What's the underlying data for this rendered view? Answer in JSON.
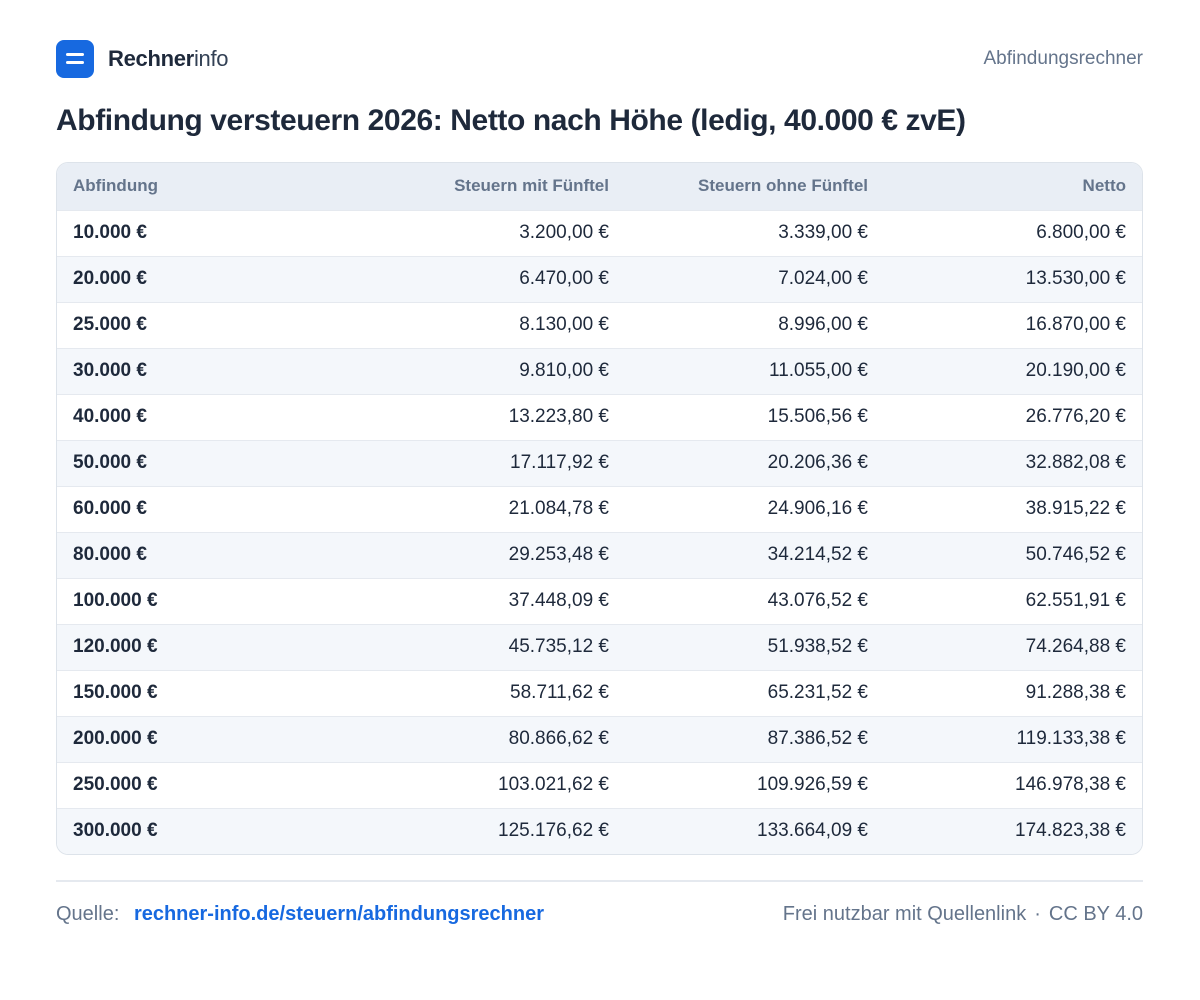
{
  "brand": {
    "name_strong": "Rechner",
    "name_light": "info",
    "page_label": "Abfindungsrechner"
  },
  "title": "Abfindung versteuern 2026: Netto nach Höhe (ledig, 40.000 € zvE)",
  "chart_data": {
    "type": "table",
    "title": "Abfindung versteuern 2026: Netto nach Höhe (ledig, 40.000 € zvE)",
    "columns": [
      "Abfindung",
      "Steuern mit Fünftel",
      "Steuern ohne Fünftel",
      "Netto"
    ],
    "rows": [
      [
        "10.000 €",
        "3.200,00 €",
        "3.339,00 €",
        "6.800,00 €"
      ],
      [
        "20.000 €",
        "6.470,00 €",
        "7.024,00 €",
        "13.530,00 €"
      ],
      [
        "25.000 €",
        "8.130,00 €",
        "8.996,00 €",
        "16.870,00 €"
      ],
      [
        "30.000 €",
        "9.810,00 €",
        "11.055,00 €",
        "20.190,00 €"
      ],
      [
        "40.000 €",
        "13.223,80 €",
        "15.506,56 €",
        "26.776,20 €"
      ],
      [
        "50.000 €",
        "17.117,92 €",
        "20.206,36 €",
        "32.882,08 €"
      ],
      [
        "60.000 €",
        "21.084,78 €",
        "24.906,16 €",
        "38.915,22 €"
      ],
      [
        "80.000 €",
        "29.253,48 €",
        "34.214,52 €",
        "50.746,52 €"
      ],
      [
        "100.000 €",
        "37.448,09 €",
        "43.076,52 €",
        "62.551,91 €"
      ],
      [
        "120.000 €",
        "45.735,12 €",
        "51.938,52 €",
        "74.264,88 €"
      ],
      [
        "150.000 €",
        "58.711,62 €",
        "65.231,52 €",
        "91.288,38 €"
      ],
      [
        "200.000 €",
        "80.866,62 €",
        "87.386,52 €",
        "119.133,38 €"
      ],
      [
        "250.000 €",
        "103.021,62 €",
        "109.926,59 €",
        "146.978,38 €"
      ],
      [
        "300.000 €",
        "125.176,62 €",
        "133.664,09 €",
        "174.823,38 €"
      ]
    ]
  },
  "footer": {
    "source_label": "Quelle:",
    "source_link": "rechner-info.de/steuern/abfindungsrechner",
    "usage": "Frei nutzbar mit Quellenlink",
    "separator": "·",
    "license": "CC BY 4.0"
  },
  "colors": {
    "accent": "#1769e0",
    "header_bg": "#e9eef5",
    "stripe": "#f4f7fb",
    "text": "#1e293b",
    "muted": "#64748b"
  },
  "icons": {
    "logo": "menu-lines-icon"
  }
}
